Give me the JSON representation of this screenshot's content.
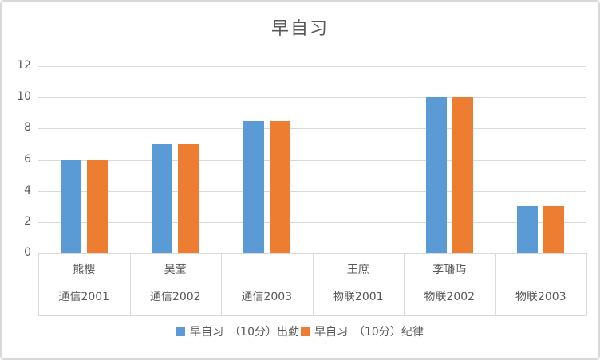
{
  "chart_data": {
    "type": "bar",
    "title": "早自习",
    "categories": [
      {
        "name": "熊樱",
        "class": "通信2001"
      },
      {
        "name": "吴莹",
        "class": "通信2002"
      },
      {
        "name": "",
        "class": "通信2003"
      },
      {
        "name": "王庶",
        "class": "物联2001"
      },
      {
        "name": "李璠玙",
        "class": "物联2002"
      },
      {
        "name": "",
        "class": "物联2003"
      }
    ],
    "series": [
      {
        "name": "早自习　（10分）出勤",
        "color": "#5B9BD5",
        "values": [
          6,
          7,
          8.5,
          0,
          10,
          3
        ]
      },
      {
        "name": "早自习　（10分）纪律",
        "color": "#ED7D31",
        "values": [
          6,
          7,
          8.5,
          0,
          10,
          3
        ]
      }
    ],
    "ylim": [
      0,
      12
    ],
    "yticks": [
      0,
      2,
      4,
      6,
      8,
      10,
      12
    ],
    "grid": true,
    "legend_position": "bottom"
  },
  "colors": {
    "series_blue": "#5B9BD5",
    "series_orange": "#ED7D31",
    "text": "#595959",
    "gridline": "#D9D9D9",
    "frame_border": "#D9D9D9",
    "background": "#FFFFFF"
  }
}
